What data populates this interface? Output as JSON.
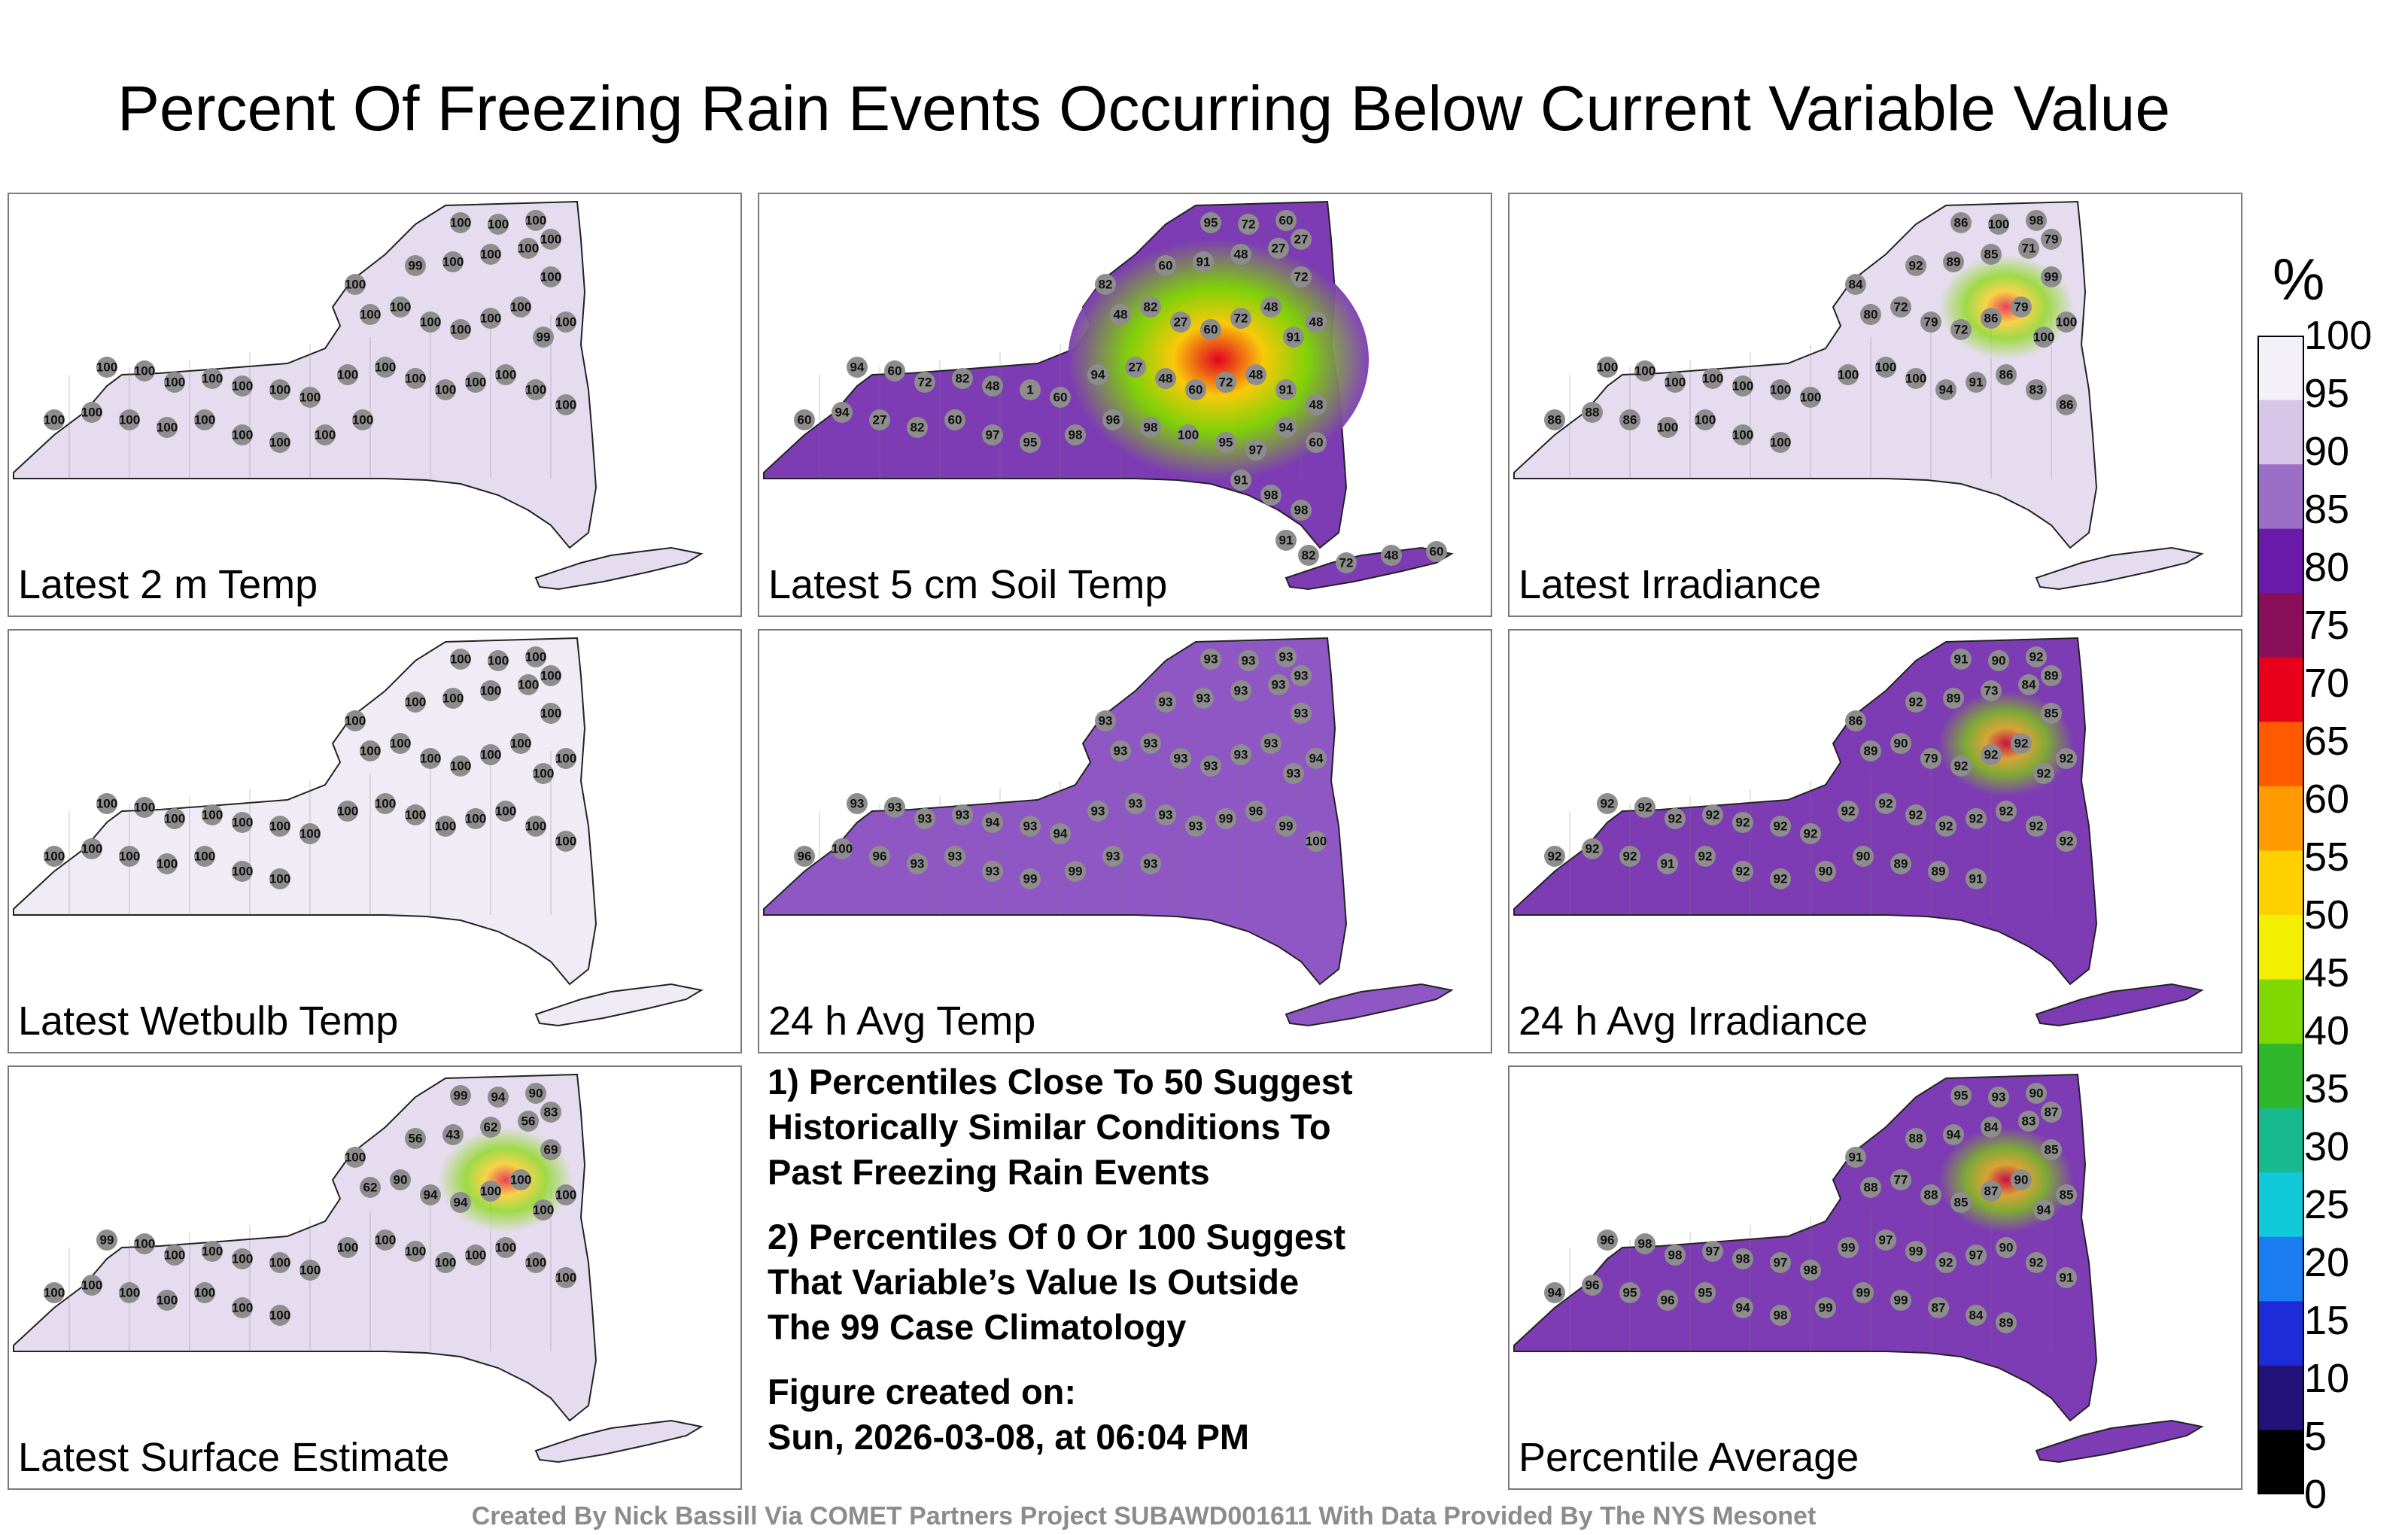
{
  "title": "Percent Of Freezing Rain Events Occurring Below Current Variable Value",
  "colorbar": {
    "unit": "%",
    "ticks": [
      "100",
      "95",
      "90",
      "85",
      "80",
      "75",
      "70",
      "65",
      "60",
      "55",
      "50",
      "45",
      "40",
      "35",
      "30",
      "25",
      "20",
      "15",
      "10",
      "5",
      "0"
    ],
    "stops": [
      "#f4f0f8",
      "#d7c6e8",
      "#9b6fc6",
      "#6a1aa8",
      "#8a0f5a",
      "#e8001a",
      "#ff5a00",
      "#ff9a00",
      "#ffd000",
      "#f2f000",
      "#7fd800",
      "#2fb82c",
      "#18b98c",
      "#11c9d8",
      "#1a7cf0",
      "#1d2bd8",
      "#22127a",
      "#000000"
    ]
  },
  "panels": [
    {
      "label": "Latest 2 m Temp",
      "base": "#e6dcf0",
      "labels": [
        "100",
        "100",
        "100",
        "100",
        "100",
        "99",
        "100",
        "100",
        "100",
        "100",
        "100",
        "100",
        "100",
        "100",
        "100",
        "100",
        "99",
        "100",
        "100",
        "100",
        "100",
        "100",
        "100",
        "100",
        "100",
        "100",
        "100",
        "100",
        "100",
        "100",
        "100",
        "100",
        "100",
        "100",
        "100",
        "100",
        "100",
        "100",
        "100",
        "100",
        "100",
        "100"
      ]
    },
    {
      "label": "Latest 5 cm Soil Temp",
      "base": "#7d3cb4",
      "labels": [
        "95",
        "72",
        "60",
        "27",
        "82",
        "60",
        "91",
        "48",
        "27",
        "72",
        "48",
        "82",
        "27",
        "60",
        "72",
        "48",
        "91",
        "48",
        "94",
        "60",
        "72",
        "82",
        "48",
        "1",
        "60",
        "94",
        "27",
        "48",
        "60",
        "72",
        "48",
        "91",
        "48",
        "60",
        "94",
        "27",
        "82",
        "60",
        "97",
        "95",
        "98",
        "96",
        "98",
        "100",
        "95",
        "97",
        "94",
        "60",
        "91",
        "98",
        "98",
        "91",
        "82",
        "72",
        "48",
        "60"
      ]
    },
    {
      "label": "Latest Irradiance",
      "base": "#e6dcf0",
      "labels": [
        "86",
        "100",
        "98",
        "79",
        "84",
        "92",
        "89",
        "85",
        "71",
        "99",
        "80",
        "72",
        "79",
        "72",
        "86",
        "79",
        "100",
        "100",
        "100",
        "100",
        "100",
        "100",
        "100",
        "100",
        "100",
        "100",
        "100",
        "100",
        "94",
        "91",
        "86",
        "83",
        "86",
        "86",
        "88",
        "86",
        "100",
        "100",
        "100",
        "100"
      ]
    },
    {
      "label": "Latest Wetbulb Temp",
      "base": "#f0ecf5",
      "labels": [
        "100",
        "100",
        "100",
        "100",
        "100",
        "100",
        "100",
        "100",
        "100",
        "100",
        "100",
        "100",
        "100",
        "100",
        "100",
        "100",
        "100",
        "100",
        "100",
        "100",
        "100",
        "100",
        "100",
        "100",
        "100",
        "100",
        "100",
        "100",
        "100",
        "100",
        "100",
        "100",
        "100",
        "100",
        "100",
        "100",
        "100",
        "100",
        "100",
        "100"
      ]
    },
    {
      "label": "24 h Avg Temp",
      "base": "#8f57c4",
      "labels": [
        "93",
        "93",
        "93",
        "93",
        "93",
        "93",
        "93",
        "93",
        "93",
        "93",
        "93",
        "93",
        "93",
        "93",
        "93",
        "93",
        "93",
        "94",
        "93",
        "93",
        "93",
        "93",
        "94",
        "93",
        "94",
        "93",
        "93",
        "93",
        "93",
        "99",
        "96",
        "99",
        "100",
        "96",
        "100",
        "96",
        "93",
        "93",
        "93",
        "99",
        "99",
        "93",
        "93"
      ]
    },
    {
      "label": "24 h Avg Irradiance",
      "base": "#7d3cb4",
      "labels": [
        "91",
        "90",
        "92",
        "89",
        "86",
        "92",
        "89",
        "73",
        "84",
        "85",
        "89",
        "90",
        "79",
        "92",
        "92",
        "92",
        "92",
        "92",
        "92",
        "92",
        "92",
        "92",
        "92",
        "92",
        "92",
        "92",
        "92",
        "92",
        "92",
        "92",
        "92",
        "92",
        "92",
        "92",
        "92",
        "92",
        "91",
        "92",
        "92",
        "92",
        "90",
        "90",
        "89",
        "89",
        "91"
      ]
    },
    {
      "label": "Latest Surface Estimate",
      "base": "#e6dcf0",
      "labels": [
        "99",
        "94",
        "90",
        "83",
        "100",
        "56",
        "43",
        "62",
        "56",
        "69",
        "62",
        "90",
        "94",
        "94",
        "100",
        "100",
        "100",
        "100",
        "99",
        "100",
        "100",
        "100",
        "100",
        "100",
        "100",
        "100",
        "100",
        "100",
        "100",
        "100",
        "100",
        "100",
        "100",
        "100",
        "100",
        "100",
        "100",
        "100",
        "100",
        "100"
      ]
    },
    {
      "label": "Percentile Average",
      "base": "#7d3cb4",
      "labels": [
        "95",
        "93",
        "90",
        "87",
        "91",
        "88",
        "94",
        "84",
        "83",
        "85",
        "88",
        "77",
        "88",
        "85",
        "87",
        "90",
        "94",
        "85",
        "96",
        "98",
        "98",
        "97",
        "98",
        "97",
        "98",
        "99",
        "97",
        "99",
        "92",
        "97",
        "90",
        "92",
        "91",
        "94",
        "96",
        "95",
        "96",
        "95",
        "94",
        "98",
        "99",
        "99",
        "99",
        "87",
        "84",
        "89"
      ]
    }
  ],
  "notes": [
    "1) Percentiles Close To 50 Suggest\nHistorically Similar Conditions To\nPast Freezing Rain Events",
    "2) Percentiles Of 0 Or 100 Suggest\nThat Variable’s Value Is Outside\nThe 99 Case Climatology"
  ],
  "figure_created_label": "Figure created on:",
  "figure_created_date": "Sun, 2026-03-08, at 06:04 PM",
  "credit": "Created By Nick Bassill Via COMET Partners Project SUBAWD001611 With Data Provided By The NYS Mesonet",
  "chart_data": {
    "type": "heatmap",
    "title": "Percent Of Freezing Rain Events Occurring Below Current Variable Value",
    "value_range": [
      0,
      100
    ],
    "units": "%",
    "panels": [
      "Latest 2 m Temp",
      "Latest 5 cm Soil Temp",
      "Latest Irradiance",
      "Latest Wetbulb Temp",
      "24 h Avg Temp",
      "24 h Avg Irradiance",
      "Latest Surface Estimate",
      "Percentile Average"
    ]
  }
}
